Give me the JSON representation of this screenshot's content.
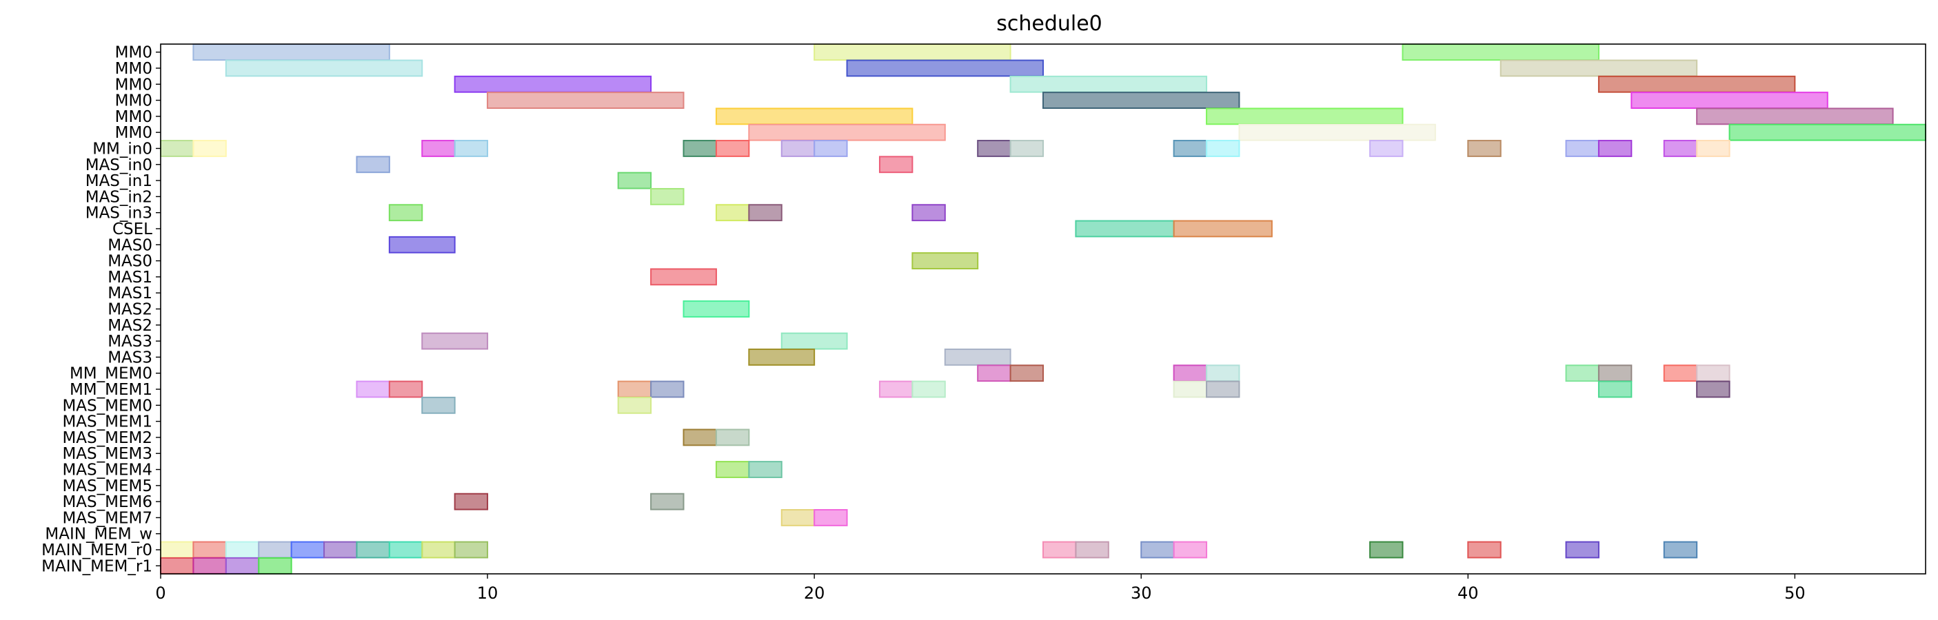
{
  "chart_data": {
    "type": "gantt",
    "title": "schedule0",
    "xlabel": "",
    "ylabel": "",
    "xlim": [
      0,
      54
    ],
    "xticks": [
      0,
      10,
      20,
      30,
      40,
      50
    ],
    "grid": false,
    "rows": [
      "MM0",
      "MM0",
      "MM0",
      "MM0",
      "MM0",
      "MM0",
      "MM_in0",
      "MAS_in0",
      "MAS_in1",
      "MAS_in2",
      "MAS_in3",
      "CSEL",
      "MAS0",
      "MAS0",
      "MAS1",
      "MAS1",
      "MAS2",
      "MAS2",
      "MAS3",
      "MAS3",
      "MM_MEM0",
      "MM_MEM1",
      "MAS_MEM0",
      "MAS_MEM1",
      "MAS_MEM2",
      "MAS_MEM3",
      "MAS_MEM4",
      "MAS_MEM5",
      "MAS_MEM6",
      "MAS_MEM7",
      "MAIN_MEM_w",
      "MAIN_MEM_r0",
      "MAIN_MEM_r1"
    ],
    "tasks": [
      {
        "row": 0,
        "start": 1,
        "end": 7,
        "color": "#9db8e0"
      },
      {
        "row": 0,
        "start": 20,
        "end": 26,
        "color": "#e0f08c"
      },
      {
        "row": 0,
        "start": 38,
        "end": 44,
        "color": "#7ef06a"
      },
      {
        "row": 1,
        "start": 2,
        "end": 8,
        "color": "#a6e2e2"
      },
      {
        "row": 1,
        "start": 21,
        "end": 27,
        "color": "#4454cc"
      },
      {
        "row": 1,
        "start": 41,
        "end": 47,
        "color": "#cccca8"
      },
      {
        "row": 2,
        "start": 9,
        "end": 15,
        "color": "#8a3af0"
      },
      {
        "row": 2,
        "start": 26,
        "end": 32,
        "color": "#9ee8d2"
      },
      {
        "row": 2,
        "start": 44,
        "end": 50,
        "color": "#c44e3a"
      },
      {
        "row": 3,
        "start": 10,
        "end": 16,
        "color": "#e08480"
      },
      {
        "row": 3,
        "start": 27,
        "end": 33,
        "color": "#3e6478"
      },
      {
        "row": 3,
        "start": 45,
        "end": 51,
        "color": "#e43ce6"
      },
      {
        "row": 4,
        "start": 17,
        "end": 23,
        "color": "#fccf3a"
      },
      {
        "row": 4,
        "start": 32,
        "end": 38,
        "color": "#80f45e"
      },
      {
        "row": 4,
        "start": 47,
        "end": 53,
        "color": "#b05e98"
      },
      {
        "row": 5,
        "start": 18,
        "end": 24,
        "color": "#f89890"
      },
      {
        "row": 5,
        "start": 33,
        "end": 39,
        "color": "#f2f2dc"
      },
      {
        "row": 5,
        "start": 48,
        "end": 54,
        "color": "#4ce468"
      },
      {
        "row": 6,
        "start": 0,
        "end": 1,
        "color": "#b8e090"
      },
      {
        "row": 6,
        "start": 1,
        "end": 2,
        "color": "#fff6b0"
      },
      {
        "row": 6,
        "start": 8,
        "end": 9,
        "color": "#e040e0"
      },
      {
        "row": 6,
        "start": 9,
        "end": 10,
        "color": "#96cde8"
      },
      {
        "row": 6,
        "start": 16,
        "end": 17,
        "color": "#3e8a64"
      },
      {
        "row": 6,
        "start": 17,
        "end": 18,
        "color": "#f66060"
      },
      {
        "row": 6,
        "start": 19,
        "end": 20,
        "color": "#b69ae0"
      },
      {
        "row": 6,
        "start": 20,
        "end": 21,
        "color": "#9aa4ee"
      },
      {
        "row": 6,
        "start": 25,
        "end": 26,
        "color": "#6a4e80"
      },
      {
        "row": 6,
        "start": 26,
        "end": 27,
        "color": "#b2c8c2"
      },
      {
        "row": 6,
        "start": 31,
        "end": 32,
        "color": "#5694b6"
      },
      {
        "row": 6,
        "start": 32,
        "end": 33,
        "color": "#9cf4fa"
      },
      {
        "row": 6,
        "start": 37,
        "end": 38,
        "color": "#c8b0f6"
      },
      {
        "row": 6,
        "start": 40,
        "end": 41,
        "color": "#b88a62"
      },
      {
        "row": 6,
        "start": 43,
        "end": 44,
        "color": "#9aa4ee"
      },
      {
        "row": 6,
        "start": 44,
        "end": 45,
        "color": "#a23ad8"
      },
      {
        "row": 6,
        "start": 46,
        "end": 47,
        "color": "#c050e6"
      },
      {
        "row": 6,
        "start": 47,
        "end": 48,
        "color": "#ffdcb4"
      },
      {
        "row": 7,
        "start": 6,
        "end": 7,
        "color": "#8aa4d8"
      },
      {
        "row": 7,
        "start": 22,
        "end": 23,
        "color": "#ec5c78"
      },
      {
        "row": 8,
        "start": 14,
        "end": 15,
        "color": "#6ad870"
      },
      {
        "row": 9,
        "start": 15,
        "end": 16,
        "color": "#a4e87a"
      },
      {
        "row": 10,
        "start": 7,
        "end": 8,
        "color": "#78e060"
      },
      {
        "row": 10,
        "start": 17,
        "end": 18,
        "color": "#d2ea62"
      },
      {
        "row": 10,
        "start": 18,
        "end": 19,
        "color": "#8a5a78"
      },
      {
        "row": 10,
        "start": 23,
        "end": 24,
        "color": "#8e42c8"
      },
      {
        "row": 11,
        "start": 28,
        "end": 31,
        "color": "#4cd0a0"
      },
      {
        "row": 11,
        "start": 31,
        "end": 34,
        "color": "#da8448"
      },
      {
        "row": 12,
        "start": 7,
        "end": 9,
        "color": "#5a46dc"
      },
      {
        "row": 13,
        "start": 23,
        "end": 25,
        "color": "#a4c840"
      },
      {
        "row": 14,
        "start": 15,
        "end": 17,
        "color": "#ec5a66"
      },
      {
        "row": 16,
        "start": 16,
        "end": 18,
        "color": "#48f09a"
      },
      {
        "row": 18,
        "start": 8,
        "end": 10,
        "color": "#be8cbe"
      },
      {
        "row": 18,
        "start": 19,
        "end": 21,
        "color": "#90e8c0"
      },
      {
        "row": 19,
        "start": 18,
        "end": 20,
        "color": "#a09028"
      },
      {
        "row": 19,
        "start": 24,
        "end": 26,
        "color": "#a8b2c6"
      },
      {
        "row": 20,
        "start": 25,
        "end": 26,
        "color": "#d058b8"
      },
      {
        "row": 20,
        "start": 26,
        "end": 27,
        "color": "#b05a4c"
      },
      {
        "row": 20,
        "start": 31,
        "end": 32,
        "color": "#d04ec0"
      },
      {
        "row": 20,
        "start": 32,
        "end": 33,
        "color": "#b0e0d8"
      },
      {
        "row": 20,
        "start": 43,
        "end": 44,
        "color": "#80e49a"
      },
      {
        "row": 20,
        "start": 44,
        "end": 45,
        "color": "#948884"
      },
      {
        "row": 20,
        "start": 46,
        "end": 47,
        "color": "#f66a62"
      },
      {
        "row": 20,
        "start": 47,
        "end": 48,
        "color": "#d8c0c8"
      },
      {
        "row": 21,
        "start": 6,
        "end": 7,
        "color": "#d890f6"
      },
      {
        "row": 21,
        "start": 7,
        "end": 8,
        "color": "#e45a6c"
      },
      {
        "row": 21,
        "start": 14,
        "end": 15,
        "color": "#e4946c"
      },
      {
        "row": 21,
        "start": 15,
        "end": 16,
        "color": "#7c8cbc"
      },
      {
        "row": 21,
        "start": 22,
        "end": 23,
        "color": "#ee90d8"
      },
      {
        "row": 21,
        "start": 23,
        "end": 24,
        "color": "#b6ecc8"
      },
      {
        "row": 21,
        "start": 31,
        "end": 32,
        "color": "#e2eed2"
      },
      {
        "row": 21,
        "start": 32,
        "end": 33,
        "color": "#a0a8b6"
      },
      {
        "row": 21,
        "start": 44,
        "end": 45,
        "color": "#4cd890"
      },
      {
        "row": 21,
        "start": 47,
        "end": 48,
        "color": "#6e4a78"
      },
      {
        "row": 22,
        "start": 8,
        "end": 9,
        "color": "#84aebc"
      },
      {
        "row": 22,
        "start": 14,
        "end": 15,
        "color": "#d2ea8a"
      },
      {
        "row": 24,
        "start": 16,
        "end": 17,
        "color": "#9c7e34"
      },
      {
        "row": 24,
        "start": 17,
        "end": 18,
        "color": "#a4c0a8"
      },
      {
        "row": 26,
        "start": 17,
        "end": 18,
        "color": "#92e252"
      },
      {
        "row": 26,
        "start": 18,
        "end": 19,
        "color": "#6cc4a4"
      },
      {
        "row": 28,
        "start": 9,
        "end": 10,
        "color": "#a03c48"
      },
      {
        "row": 28,
        "start": 15,
        "end": 16,
        "color": "#889a8a"
      },
      {
        "row": 29,
        "start": 19,
        "end": 20,
        "color": "#e4d47a"
      },
      {
        "row": 29,
        "start": 20,
        "end": 21,
        "color": "#f266dc"
      },
      {
        "row": 31,
        "start": 0,
        "end": 1,
        "color": "#f4f4a0"
      },
      {
        "row": 31,
        "start": 1,
        "end": 2,
        "color": "#ec7a70"
      },
      {
        "row": 31,
        "start": 2,
        "end": 3,
        "color": "#b6f4ee"
      },
      {
        "row": 31,
        "start": 3,
        "end": 4,
        "color": "#a0b0d4"
      },
      {
        "row": 31,
        "start": 4,
        "end": 5,
        "color": "#4c6cf8"
      },
      {
        "row": 31,
        "start": 5,
        "end": 6,
        "color": "#8a5ec2"
      },
      {
        "row": 31,
        "start": 6,
        "end": 7,
        "color": "#4ab4a0"
      },
      {
        "row": 31,
        "start": 7,
        "end": 8,
        "color": "#3edcb0"
      },
      {
        "row": 31,
        "start": 8,
        "end": 9,
        "color": "#c8e064"
      },
      {
        "row": 31,
        "start": 9,
        "end": 10,
        "color": "#98c060"
      },
      {
        "row": 31,
        "start": 27,
        "end": 28,
        "color": "#f48cb4"
      },
      {
        "row": 31,
        "start": 28,
        "end": 29,
        "color": "#c49ab0"
      },
      {
        "row": 31,
        "start": 30,
        "end": 31,
        "color": "#7890c8"
      },
      {
        "row": 31,
        "start": 31,
        "end": 32,
        "color": "#f47ad6"
      },
      {
        "row": 31,
        "start": 37,
        "end": 38,
        "color": "#3a8a40"
      },
      {
        "row": 31,
        "start": 40,
        "end": 41,
        "color": "#e05454"
      },
      {
        "row": 31,
        "start": 43,
        "end": 44,
        "color": "#6446c8"
      },
      {
        "row": 31,
        "start": 46,
        "end": 47,
        "color": "#4e84b4"
      },
      {
        "row": 32,
        "start": 0,
        "end": 1,
        "color": "#e04c56"
      },
      {
        "row": 32,
        "start": 1,
        "end": 2,
        "color": "#c42e96"
      },
      {
        "row": 32,
        "start": 2,
        "end": 3,
        "color": "#9a5ad4"
      },
      {
        "row": 32,
        "start": 3,
        "end": 4,
        "color": "#52e054"
      }
    ]
  }
}
